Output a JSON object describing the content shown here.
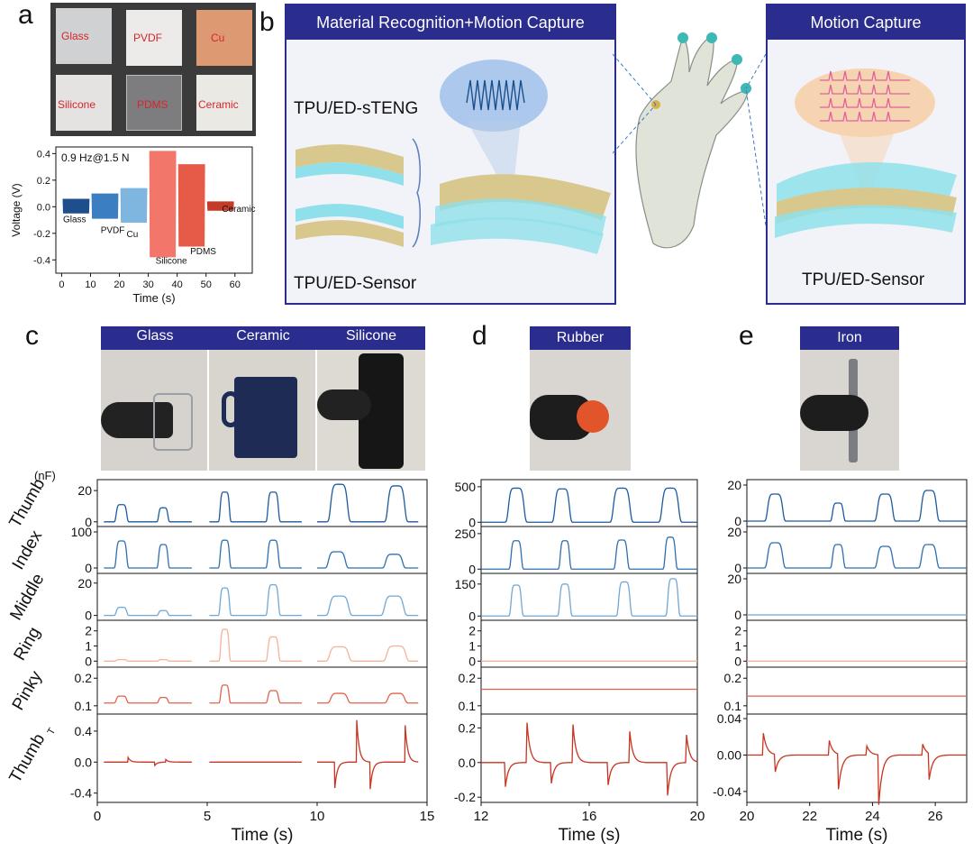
{
  "panel_letters": {
    "a": "a",
    "b": "b",
    "c": "c",
    "d": "d",
    "e": "e"
  },
  "panel_a": {
    "samples": [
      "Glass",
      "PVDF",
      "Cu",
      "Silicone",
      "PDMS",
      "Ceramic"
    ],
    "sample_colors": [
      "#d9dadc",
      "#ecebea",
      "#dd9a72",
      "#e7e6e4",
      "#8a8a8a",
      "#e9e7e2"
    ],
    "sample_label_color": "#d6262b"
  },
  "panel_b": {
    "left_banner": "Material Recognition+Motion Capture",
    "right_banner": "Motion Capture",
    "steng_label": "TPU/ED-sTENG",
    "sensor_label_left": "TPU/ED-Sensor",
    "sensor_label_right": "TPU/ED-Sensor",
    "banner_color": "#2a2d8e"
  },
  "panel_c": {
    "banners": [
      "Glass",
      "Ceramic",
      "Silicone"
    ]
  },
  "panel_d": {
    "banner": "Rubber"
  },
  "panel_e": {
    "banner": "Iron"
  },
  "channel_labels": [
    "Thumb",
    "Index",
    "Middle",
    "Ring",
    "Pinky",
    "Thumb"
  ],
  "thumb_t_subscript": "T",
  "unit_nf": "(nF)",
  "chart_data": [
    {
      "id": "a",
      "type": "line",
      "annotation": "0.9 Hz@1.5 N",
      "xlabel": "Time (s)",
      "ylabel": "Voltage (V)",
      "xlim": [
        -2,
        66
      ],
      "ylim": [
        -0.5,
        0.45
      ],
      "xticks": [
        0,
        10,
        20,
        30,
        40,
        50,
        60
      ],
      "yticks": [
        -0.4,
        -0.2,
        0.0,
        0.2,
        0.4
      ],
      "ytick_labels": [
        "-0.4",
        "-0.2",
        "0.0",
        "0.2",
        "0.4"
      ],
      "series": [
        {
          "name": "Glass",
          "x0": 0.5,
          "x1": 9.5,
          "pos": 0.06,
          "neg": -0.05,
          "color": "#1f4e8c",
          "label_x": 0.5,
          "label_y": -0.09
        },
        {
          "name": "PVDF",
          "x0": 10.5,
          "x1": 19.5,
          "pos": 0.1,
          "neg": -0.09,
          "color": "#3b7fc2",
          "label_x": 13.5,
          "label_y": -0.17
        },
        {
          "name": "Cu",
          "x0": 20.5,
          "x1": 29.5,
          "pos": 0.14,
          "neg": -0.12,
          "color": "#7fb6e0",
          "label_x": 22.5,
          "label_y": -0.2
        },
        {
          "name": "Silicone",
          "x0": 30.5,
          "x1": 39.5,
          "pos": 0.42,
          "neg": -0.38,
          "color": "#f2776a",
          "label_x": 32.5,
          "label_y": -0.4
        },
        {
          "name": "PDMS",
          "x0": 40.5,
          "x1": 49.5,
          "pos": 0.32,
          "neg": -0.3,
          "color": "#e65a48",
          "label_x": 44.5,
          "label_y": -0.33
        },
        {
          "name": "Ceramic",
          "x0": 50.5,
          "x1": 59.5,
          "pos": 0.04,
          "neg": -0.03,
          "color": "#c43b2a",
          "label_x": 55.5,
          "label_y": -0.01
        }
      ]
    },
    {
      "id": "c",
      "type": "line",
      "xlabel": "Time (s)",
      "xlim": [
        0,
        15
      ],
      "xticks": [
        0,
        5,
        10,
        15
      ],
      "segments": [
        [
          0.3,
          4.3
        ],
        [
          5.1,
          9.3
        ],
        [
          10.0,
          14.6
        ]
      ],
      "rows": [
        {
          "name": "Thumb",
          "ylim": [
            -3,
            27
          ],
          "yticks": [
            0,
            20
          ],
          "ytick_labels": [
            "0",
            "20"
          ],
          "color": "#1d5a9e",
          "base": 0,
          "peaks": [
            {
              "t": 1.1,
              "h": 11,
              "w": 0.25
            },
            {
              "t": 3.0,
              "h": 9,
              "w": 0.22
            },
            {
              "t": 5.8,
              "h": 19,
              "w": 0.22
            },
            {
              "t": 8.0,
              "h": 19,
              "w": 0.25
            },
            {
              "t": 11.0,
              "h": 24,
              "w": 0.4
            },
            {
              "t": 13.6,
              "h": 23,
              "w": 0.4
            }
          ]
        },
        {
          "name": "Index",
          "ylim": [
            -15,
            115
          ],
          "yticks": [
            0,
            100
          ],
          "ytick_labels": [
            "0",
            "100"
          ],
          "color": "#2e6fb0",
          "base": 0,
          "peaks": [
            {
              "t": 1.1,
              "h": 75,
              "w": 0.25
            },
            {
              "t": 3.0,
              "h": 65,
              "w": 0.22
            },
            {
              "t": 5.8,
              "h": 77,
              "w": 0.22
            },
            {
              "t": 8.0,
              "h": 77,
              "w": 0.25
            },
            {
              "t": 10.9,
              "h": 45,
              "w": 0.4
            },
            {
              "t": 13.5,
              "h": 38,
              "w": 0.4
            }
          ]
        },
        {
          "name": "Middle",
          "ylim": [
            -3,
            26
          ],
          "yticks": [
            0,
            20
          ],
          "ytick_labels": [
            "0",
            "20"
          ],
          "color": "#6fa8d6",
          "base": 0,
          "peaks": [
            {
              "t": 1.1,
              "h": 5,
              "w": 0.25
            },
            {
              "t": 3.0,
              "h": 3,
              "w": 0.22
            },
            {
              "t": 5.8,
              "h": 17,
              "w": 0.22
            },
            {
              "t": 8.0,
              "h": 19,
              "w": 0.25
            },
            {
              "t": 11.0,
              "h": 12,
              "w": 0.45
            },
            {
              "t": 13.5,
              "h": 12,
              "w": 0.45
            }
          ]
        },
        {
          "name": "Ring",
          "ylim": [
            -0.4,
            2.7
          ],
          "yticks": [
            0,
            1,
            2
          ],
          "ytick_labels": [
            "0",
            "1",
            "2"
          ],
          "color": "#f5b39a",
          "base": 0,
          "peaks": [
            {
              "t": 1.1,
              "h": 0.1,
              "w": 0.25
            },
            {
              "t": 3.0,
              "h": 0.1,
              "w": 0.22
            },
            {
              "t": 5.8,
              "h": 2.1,
              "w": 0.2
            },
            {
              "t": 8.0,
              "h": 1.6,
              "w": 0.25
            },
            {
              "t": 11.0,
              "h": 0.95,
              "w": 0.45
            },
            {
              "t": 13.6,
              "h": 1.0,
              "w": 0.45
            }
          ]
        },
        {
          "name": "Pinky",
          "ylim": [
            0.07,
            0.24
          ],
          "yticks": [
            0.1,
            0.2
          ],
          "ytick_labels": [
            "0.1",
            "0.2"
          ],
          "color": "#e2614b",
          "base": 0.11,
          "peaks": [
            {
              "t": 1.1,
              "h": 0.025,
              "w": 0.25
            },
            {
              "t": 3.0,
              "h": 0.02,
              "w": 0.22
            },
            {
              "t": 5.8,
              "h": 0.065,
              "w": 0.2
            },
            {
              "t": 8.0,
              "h": 0.045,
              "w": 0.25
            },
            {
              "t": 11.0,
              "h": 0.035,
              "w": 0.4
            },
            {
              "t": 13.6,
              "h": 0.035,
              "w": 0.4
            }
          ]
        },
        {
          "name": "ThumbT",
          "ylim": [
            -0.52,
            0.62
          ],
          "yticks": [
            -0.4,
            0.0,
            0.4
          ],
          "ytick_labels": [
            "-0.4",
            "0.0",
            "0.4"
          ],
          "color": "#c8341f",
          "base": 0,
          "spikes": [
            {
              "t": 1.4,
              "h": 0.06
            },
            {
              "t": 2.6,
              "h": -0.05
            },
            {
              "t": 3.1,
              "h": 0.04
            },
            {
              "t": 10.8,
              "h": -0.35
            },
            {
              "t": 11.8,
              "h": 0.55
            },
            {
              "t": 12.4,
              "h": -0.4
            },
            {
              "t": 14.0,
              "h": 0.5
            }
          ]
        }
      ]
    },
    {
      "id": "d",
      "type": "line",
      "xlabel": "Time (s)",
      "xlim": [
        12,
        20
      ],
      "xticks": [
        12,
        16,
        20
      ],
      "segments": [
        [
          12.0,
          20.0
        ]
      ],
      "rows": [
        {
          "name": "Thumb",
          "ylim": [
            -60,
            600
          ],
          "yticks": [
            0,
            500
          ],
          "ytick_labels": [
            "0",
            "500"
          ],
          "color": "#1d5a9e",
          "base": 0,
          "peaks": [
            {
              "t": 13.3,
              "h": 480,
              "w": 0.3
            },
            {
              "t": 15.0,
              "h": 470,
              "w": 0.28
            },
            {
              "t": 17.2,
              "h": 480,
              "w": 0.32
            },
            {
              "t": 19.0,
              "h": 480,
              "w": 0.32
            }
          ]
        },
        {
          "name": "Index",
          "ylim": [
            -30,
            300
          ],
          "yticks": [
            0,
            250
          ],
          "ytick_labels": [
            "0",
            "250"
          ],
          "color": "#2e6fb0",
          "base": 0,
          "peaks": [
            {
              "t": 13.3,
              "h": 200,
              "w": 0.2
            },
            {
              "t": 15.1,
              "h": 200,
              "w": 0.18
            },
            {
              "t": 17.2,
              "h": 205,
              "w": 0.22
            },
            {
              "t": 19.0,
              "h": 225,
              "w": 0.2
            }
          ]
        },
        {
          "name": "Middle",
          "ylim": [
            -20,
            200
          ],
          "yticks": [
            0,
            150
          ],
          "ytick_labels": [
            "0",
            "150"
          ],
          "color": "#6fa8d6",
          "base": 0,
          "peaks": [
            {
              "t": 13.3,
              "h": 145,
              "w": 0.2
            },
            {
              "t": 15.1,
              "h": 150,
              "w": 0.2
            },
            {
              "t": 17.3,
              "h": 160,
              "w": 0.22
            },
            {
              "t": 19.1,
              "h": 175,
              "w": 0.2
            }
          ]
        },
        {
          "name": "Ring",
          "ylim": [
            -0.4,
            2.7
          ],
          "yticks": [
            0,
            1,
            2
          ],
          "ytick_labels": [
            "0",
            "1",
            "2"
          ],
          "color": "#f5b39a",
          "base": 0,
          "peaks": []
        },
        {
          "name": "Pinky",
          "ylim": [
            0.07,
            0.24
          ],
          "yticks": [
            0.1,
            0.2
          ],
          "ytick_labels": [
            "0.1",
            "0.2"
          ],
          "color": "#e2614b",
          "base": 0.16,
          "peaks": []
        },
        {
          "name": "ThumbT",
          "ylim": [
            -0.23,
            0.28
          ],
          "yticks": [
            -0.2,
            0.0,
            0.2
          ],
          "ytick_labels": [
            "-0.2",
            "0.0",
            "0.2"
          ],
          "color": "#c8341f",
          "base": 0,
          "spikes": [
            {
              "t": 12.9,
              "h": -0.14
            },
            {
              "t": 13.7,
              "h": 0.23
            },
            {
              "t": 14.6,
              "h": -0.12
            },
            {
              "t": 15.4,
              "h": 0.22
            },
            {
              "t": 16.7,
              "h": -0.13
            },
            {
              "t": 17.5,
              "h": 0.18
            },
            {
              "t": 18.9,
              "h": -0.19
            },
            {
              "t": 19.6,
              "h": 0.16
            }
          ]
        }
      ]
    },
    {
      "id": "e",
      "type": "line",
      "xlabel": "Time (s)",
      "xlim": [
        20,
        27
      ],
      "xticks": [
        20,
        22,
        24,
        26
      ],
      "segments": [
        [
          20.0,
          27.0
        ]
      ],
      "rows": [
        {
          "name": "Thumb",
          "ylim": [
            -3,
            23
          ],
          "yticks": [
            0,
            20
          ],
          "ytick_labels": [
            "0",
            "20"
          ],
          "color": "#1d5a9e",
          "base": 0,
          "peaks": [
            {
              "t": 20.9,
              "h": 15,
              "w": 0.25
            },
            {
              "t": 22.9,
              "h": 10,
              "w": 0.18
            },
            {
              "t": 24.4,
              "h": 15,
              "w": 0.25
            },
            {
              "t": 25.8,
              "h": 17,
              "w": 0.25
            }
          ]
        },
        {
          "name": "Index",
          "ylim": [
            -3,
            23
          ],
          "yticks": [
            0,
            20
          ],
          "ytick_labels": [
            "0",
            "20"
          ],
          "color": "#2e6fb0",
          "base": 0,
          "peaks": [
            {
              "t": 20.9,
              "h": 14,
              "w": 0.25
            },
            {
              "t": 22.9,
              "h": 13,
              "w": 0.18
            },
            {
              "t": 24.4,
              "h": 12,
              "w": 0.25
            },
            {
              "t": 25.8,
              "h": 13,
              "w": 0.25
            }
          ]
        },
        {
          "name": "Middle",
          "ylim": [
            -3,
            23
          ],
          "yticks": [
            0,
            20
          ],
          "ytick_labels": [
            "0",
            "20"
          ],
          "color": "#6fa8d6",
          "base": 0,
          "peaks": []
        },
        {
          "name": "Ring",
          "ylim": [
            -0.4,
            2.7
          ],
          "yticks": [
            0,
            1,
            2
          ],
          "ytick_labels": [
            "0",
            "1",
            "2"
          ],
          "color": "#f5b39a",
          "base": 0,
          "peaks": []
        },
        {
          "name": "Pinky",
          "ylim": [
            0.07,
            0.24
          ],
          "yticks": [
            0.1,
            0.2
          ],
          "ytick_labels": [
            "0.1",
            "0.2"
          ],
          "color": "#e2614b",
          "base": 0.135,
          "peaks": []
        },
        {
          "name": "ThumbT",
          "ylim": [
            -0.052,
            0.045
          ],
          "yticks": [
            -0.04,
            0.0,
            0.04
          ],
          "ytick_labels": [
            "-0.04",
            "0.00",
            "0.04"
          ],
          "color": "#c8341f",
          "base": 0,
          "spikes": [
            {
              "t": 20.5,
              "h": 0.03
            },
            {
              "t": 20.9,
              "h": -0.02
            },
            {
              "t": 22.6,
              "h": 0.02
            },
            {
              "t": 22.9,
              "h": -0.045
            },
            {
              "t": 23.8,
              "h": 0.012
            },
            {
              "t": 24.2,
              "h": -0.055
            },
            {
              "t": 25.8,
              "h": -0.03
            },
            {
              "t": 25.6,
              "h": 0.012
            }
          ]
        }
      ]
    }
  ]
}
